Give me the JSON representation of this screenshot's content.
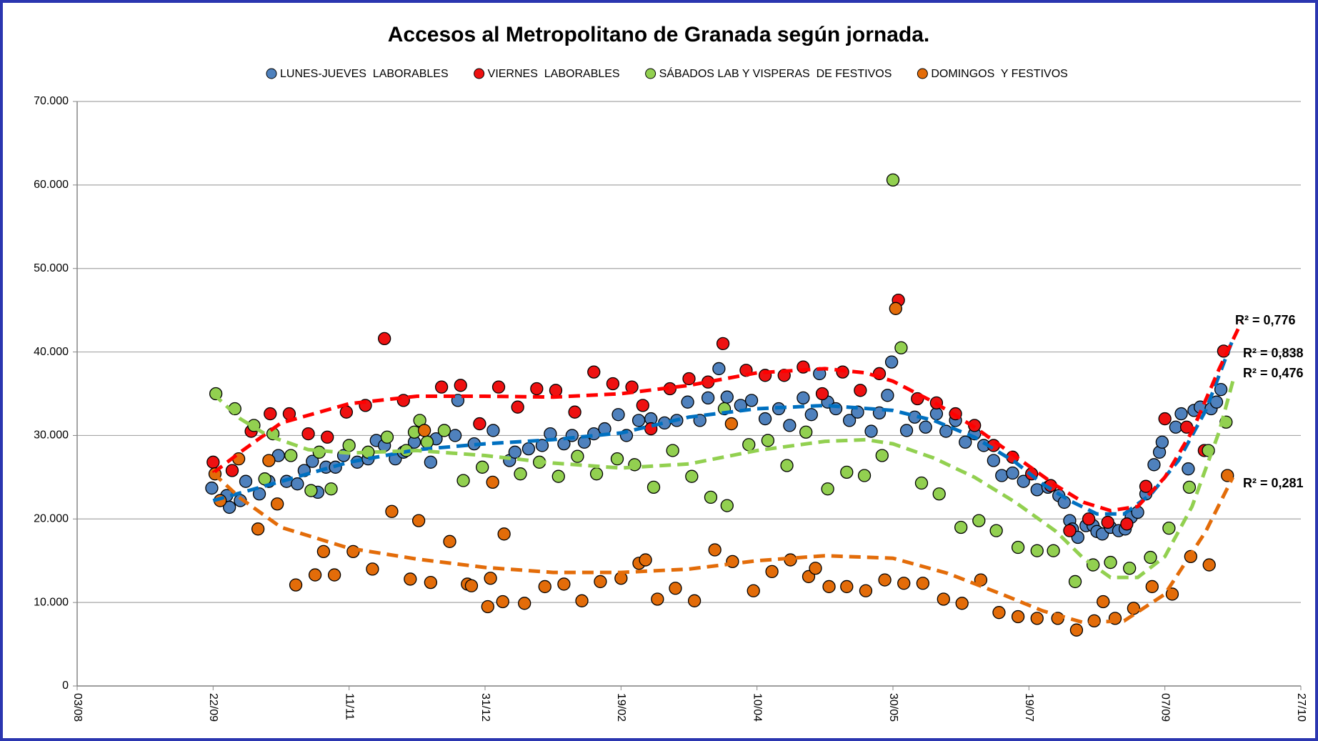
{
  "chart_data": {
    "type": "scatter",
    "title": "Accesos al Metropolitano de Granada según jornada.",
    "xlim": [
      0,
      450
    ],
    "xticks": [
      {
        "value": 0,
        "label": "03/08"
      },
      {
        "value": 50,
        "label": "22/09"
      },
      {
        "value": 100,
        "label": "11/11"
      },
      {
        "value": 150,
        "label": "31/12"
      },
      {
        "value": 200,
        "label": "19/02"
      },
      {
        "value": 250,
        "label": "10/04"
      },
      {
        "value": 300,
        "label": "30/05"
      },
      {
        "value": 350,
        "label": "19/07"
      },
      {
        "value": 400,
        "label": "07/09"
      },
      {
        "value": 450,
        "label": "27/10"
      }
    ],
    "ylim": [
      0,
      70000
    ],
    "yticks": [
      0,
      {
        "value": 10000,
        "label": "10.000"
      },
      {
        "value": 20000,
        "label": "20.000"
      },
      {
        "value": 30000,
        "label": "30.000"
      },
      {
        "value": 40000,
        "label": "40.000"
      },
      {
        "value": 50000,
        "label": "50.000"
      },
      {
        "value": 60000,
        "label": "60.000"
      },
      {
        "value": 70000,
        "label": "70.000"
      }
    ],
    "grid": true,
    "legend": "top",
    "series": [
      {
        "name": "LUNES-JUEVES  LABORABLES",
        "color": "#4f81bd",
        "x": [
          49.5,
          55,
          56,
          60,
          62,
          67,
          70.5,
          74,
          77,
          81,
          83.5,
          86.5,
          88.5,
          91.5,
          95,
          98,
          103,
          107,
          110,
          113,
          117,
          120,
          124,
          130,
          132,
          139,
          140,
          146,
          153,
          159,
          161,
          166,
          171,
          174,
          179,
          182,
          186.5,
          190,
          194,
          199,
          202,
          206.5,
          211,
          216,
          220.5,
          224.5,
          229,
          232,
          236,
          239,
          244,
          248,
          253,
          258,
          262,
          267,
          270,
          273,
          276,
          279,
          284,
          287,
          292,
          295,
          298,
          299.5,
          305,
          308,
          312,
          316,
          319.5,
          323,
          326.6,
          330,
          333.4,
          337,
          340,
          344,
          348,
          353,
          357,
          361,
          363,
          365,
          366,
          368,
          371,
          373.6,
          375,
          377,
          380,
          383,
          385.4,
          387.6,
          390,
          393,
          396,
          398,
          399,
          404,
          406,
          408.6,
          410.7,
          413,
          417,
          419,
          420.6
        ],
        "values": [
          23700,
          22800,
          21400,
          22200,
          24500,
          23000,
          24500,
          27600,
          24500,
          24200,
          25800,
          26900,
          23200,
          26200,
          26200,
          27600,
          26800,
          27200,
          29400,
          28800,
          27200,
          28000,
          29200,
          26800,
          29600,
          30000,
          34200,
          29000,
          30600,
          27000,
          28000,
          28400,
          28800,
          30200,
          29000,
          30000,
          29200,
          30200,
          30800,
          32500,
          30000,
          31800,
          32000,
          31500,
          31800,
          34000,
          31800,
          34500,
          38000,
          34600,
          33600,
          34200,
          32000,
          33200,
          31200,
          34500,
          32500,
          37400,
          34000,
          33200,
          31800,
          32800,
          30500,
          32700,
          34800,
          38800,
          30600,
          32200,
          31000,
          32600,
          30500,
          31800,
          29200,
          30200,
          28800,
          27000,
          25200,
          25500,
          24500,
          23500,
          23800,
          22800,
          22000,
          19800,
          18800,
          17800,
          19200,
          19200,
          18500,
          18200,
          19000,
          18600,
          18800,
          20200,
          20800,
          23000,
          26500,
          28000,
          29200,
          31000,
          32600,
          26000,
          33000,
          33400,
          33200,
          34000,
          35500
        ],
        "trend": {
          "color": "#0070c0",
          "x": [
            50,
            75,
            100,
            125,
            150,
            175,
            200,
            225,
            250,
            275,
            300,
            315,
            330,
            345,
            355,
            365,
            375,
            385,
            395,
            405,
            415,
            425
          ],
          "values": [
            22200,
            24500,
            26800,
            28300,
            29000,
            29500,
            30300,
            32200,
            33200,
            33600,
            33000,
            31800,
            29800,
            26800,
            24200,
            22200,
            20600,
            20600,
            23000,
            27000,
            33000,
            41500
          ]
        },
        "r2_label": "R² = 0,838"
      },
      {
        "name": "VIERNES  LABORABLES",
        "color": "#ee1111",
        "x": [
          50,
          57,
          64,
          71,
          78,
          85,
          92,
          99,
          106,
          113,
          120,
          134,
          141,
          148,
          155,
          162,
          169,
          176,
          183,
          190,
          197,
          204,
          208,
          211,
          218,
          225,
          232,
          237.5,
          246,
          253,
          260,
          267,
          274,
          281.5,
          288,
          295,
          302,
          309,
          316,
          323,
          330,
          337,
          344,
          351,
          358,
          365,
          372,
          379,
          386,
          393,
          400,
          408,
          414.5,
          421.6
        ],
        "values": [
          26800,
          25800,
          30500,
          32600,
          32600,
          30200,
          29800,
          32800,
          33600,
          41600,
          34200,
          35800,
          36000,
          31400,
          35800,
          33400,
          35600,
          35400,
          32800,
          37600,
          36200,
          35800,
          33600,
          30800,
          35600,
          36800,
          36400,
          41000,
          37800,
          37200,
          37200,
          38200,
          35000,
          37600,
          35400,
          37400,
          46200,
          34400,
          33900,
          32600,
          31200,
          28800,
          27400,
          25400,
          24000,
          18600,
          20000,
          19600,
          19400,
          23900,
          32000,
          31000,
          28200,
          40100
        ],
        "trend": {
          "color": "#ff0000",
          "x": [
            50,
            60,
            75,
            100,
            125,
            150,
            175,
            200,
            225,
            250,
            275,
            290,
            300,
            315,
            330,
            345,
            360,
            370,
            380,
            390,
            400,
            410,
            420,
            428
          ],
          "values": [
            25500,
            28000,
            31500,
            33800,
            34700,
            34700,
            34600,
            35000,
            36000,
            37500,
            38000,
            37500,
            36500,
            34000,
            31000,
            27500,
            24000,
            22000,
            21000,
            21500,
            25000,
            30500,
            38000,
            43500
          ]
        },
        "r2_label": "R² = 0,776"
      },
      {
        "name": "SÁBADOS LAB Y VISPERAS  DE FESTIVOS",
        "color": "#92d050",
        "x": [
          51,
          58,
          65,
          69,
          72,
          78.6,
          86,
          89,
          93.4,
          100,
          107,
          114,
          121,
          124,
          126,
          128.7,
          135,
          142,
          149,
          163,
          170,
          177,
          184,
          191,
          198.6,
          205,
          212,
          219,
          226,
          233,
          238,
          239,
          247,
          254,
          261,
          268,
          276,
          283,
          289.5,
          296,
          300,
          303,
          310.5,
          317,
          325,
          331.6,
          338,
          346,
          353,
          359,
          367,
          373.6,
          380,
          387,
          394.7,
          401.5,
          409,
          416,
          422.5
        ],
        "values": [
          35000,
          33200,
          31200,
          24800,
          30200,
          27600,
          23400,
          28000,
          23600,
          28800,
          28000,
          29800,
          28200,
          30400,
          31800,
          29200,
          30600,
          24600,
          26200,
          25400,
          26800,
          25100,
          27500,
          25400,
          27200,
          26500,
          23800,
          28200,
          25100,
          22600,
          33200,
          21600,
          28900,
          29400,
          26400,
          30400,
          23600,
          25600,
          25200,
          27600,
          60600,
          40500,
          24300,
          23000,
          19000,
          19800,
          18600,
          16600,
          16200,
          16200,
          12500,
          14500,
          14800,
          14100,
          15400,
          18900,
          23800,
          28200,
          31600
        ],
        "trend": {
          "color": "#92d050",
          "x": [
            50,
            60,
            70,
            85,
            100,
            125,
            150,
            175,
            200,
            225,
            250,
            275,
            290,
            300,
            315,
            330,
            345,
            360,
            370,
            380,
            390,
            400,
            410,
            420,
            425
          ],
          "values": [
            35000,
            32000,
            30000,
            28300,
            27900,
            28200,
            27600,
            26700,
            26100,
            26600,
            28200,
            29300,
            29500,
            29000,
            27300,
            25000,
            22000,
            18500,
            15300,
            13000,
            13000,
            15500,
            21500,
            30500,
            36500
          ]
        },
        "r2_label": "R² = 0,476"
      },
      {
        "name": "DOMINGOS  Y FESTIVOS",
        "color": "#e36c09",
        "x": [
          50.7,
          52.6,
          59.4,
          66.5,
          70.5,
          73.6,
          80.4,
          87.5,
          90.6,
          94.6,
          101.5,
          108.6,
          115.7,
          122.5,
          125.6,
          127.7,
          130,
          137,
          143.5,
          145,
          151,
          152,
          152.8,
          156.5,
          157,
          164.5,
          172,
          179,
          185.6,
          192.4,
          200,
          206.6,
          209,
          213.4,
          220,
          227,
          234.5,
          241,
          240.6,
          248.7,
          255.5,
          262.3,
          269,
          271.5,
          276.5,
          283,
          290,
          297,
          301,
          304,
          311,
          318.6,
          325.4,
          332.3,
          339,
          346,
          353,
          360.6,
          367.5,
          374,
          377.3,
          381.7,
          388.5,
          395.3,
          402.7,
          409.5,
          416.3,
          423
        ],
        "values": [
          25400,
          22200,
          27200,
          18800,
          27000,
          21800,
          12100,
          13300,
          16100,
          13300,
          16100,
          14000,
          20900,
          12800,
          19800,
          30600,
          12400,
          17300,
          12200,
          12000,
          9500,
          12900,
          24400,
          10100,
          18200,
          9900,
          11900,
          12200,
          10200,
          12500,
          12900,
          14700,
          15100,
          10400,
          11700,
          10200,
          16300,
          14900,
          31400,
          11400,
          13700,
          15100,
          13100,
          14100,
          11900,
          11900,
          11400,
          12700,
          45200,
          12300,
          12300,
          10400,
          9900,
          12700,
          8800,
          8300,
          8100,
          8100,
          6700,
          7800,
          10100,
          8100,
          9300,
          11900,
          11000,
          15500,
          14500,
          25200
        ],
        "trend": {
          "color": "#e36c09",
          "x": [
            50,
            60,
            75,
            100,
            125,
            150,
            175,
            200,
            225,
            250,
            275,
            300,
            320,
            340,
            355,
            370,
            385,
            400,
            415,
            425
          ],
          "values": [
            25500,
            22500,
            19000,
            16500,
            15200,
            14200,
            13600,
            13600,
            14000,
            15000,
            15600,
            15300,
            13500,
            11000,
            9000,
            7600,
            7800,
            11000,
            18500,
            25000
          ]
        },
        "r2_label": "R² = 0,281"
      }
    ]
  }
}
